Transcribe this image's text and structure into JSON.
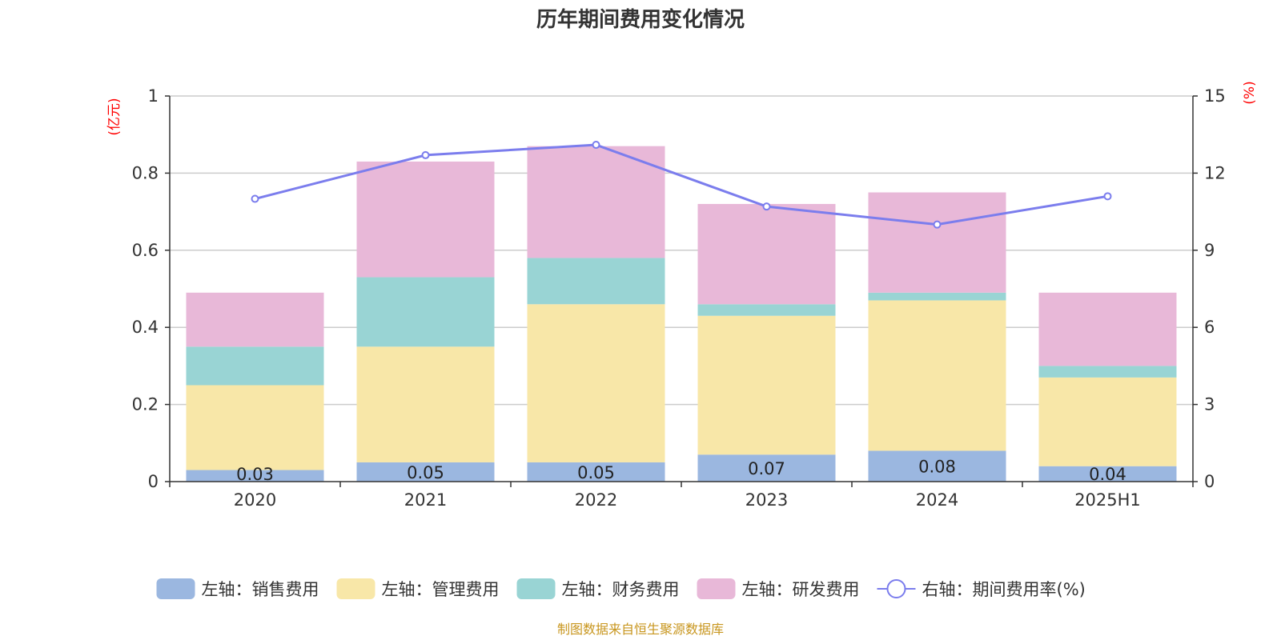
{
  "chart_data": {
    "type": "bar",
    "title": "历年期间费用变化情况",
    "categories": [
      "2020",
      "2021",
      "2022",
      "2023",
      "2024",
      "2025H1"
    ],
    "left_axis": {
      "unit": "(亿元)",
      "ylim": [
        0,
        1
      ],
      "ticks": [
        "0",
        "0.2",
        "0.4",
        "0.6",
        "0.8",
        "1"
      ]
    },
    "right_axis": {
      "unit": "(%)",
      "ylim": [
        0,
        15
      ],
      "ticks": [
        "0",
        "3",
        "6",
        "9",
        "12",
        "15"
      ]
    },
    "stacked": true,
    "grid": true,
    "legend_position": "bottom",
    "series": [
      {
        "name": "左轴：销售费用",
        "type": "bar",
        "axis": "left",
        "color": "#9bb7e0",
        "values": [
          0.03,
          0.05,
          0.05,
          0.07,
          0.08,
          0.04
        ],
        "labels": [
          "0.03",
          "0.05",
          "0.05",
          "0.07",
          "0.08",
          "0.04"
        ]
      },
      {
        "name": "左轴：管理费用",
        "type": "bar",
        "axis": "left",
        "color": "#f8e7a8",
        "values": [
          0.22,
          0.3,
          0.41,
          0.36,
          0.39,
          0.23
        ]
      },
      {
        "name": "左轴：财务费用",
        "type": "bar",
        "axis": "left",
        "color": "#99d4d4",
        "values": [
          0.1,
          0.18,
          0.12,
          0.03,
          0.02,
          0.03
        ]
      },
      {
        "name": "左轴：研发费用",
        "type": "bar",
        "axis": "left",
        "color": "#e8b8d8",
        "values": [
          0.14,
          0.3,
          0.29,
          0.26,
          0.26,
          0.19
        ]
      },
      {
        "name": "右轴：期间费用率(%)",
        "type": "line",
        "axis": "right",
        "color": "#7b7ded",
        "values": [
          11.0,
          12.7,
          13.1,
          10.7,
          10.0,
          11.1
        ]
      }
    ]
  },
  "source": "制图数据来自恒生聚源数据库"
}
